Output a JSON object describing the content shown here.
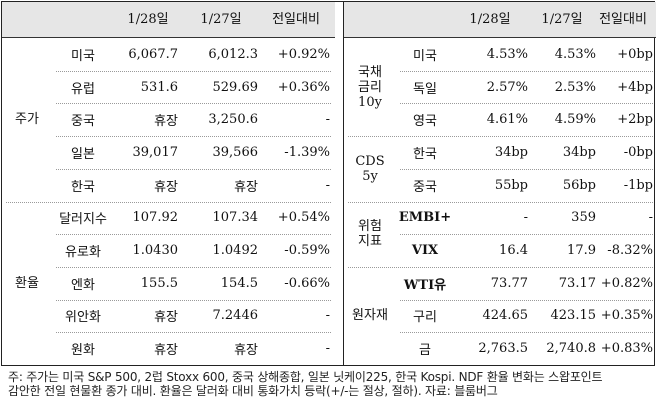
{
  "headers": {
    "d1": "1/28일",
    "d2": "1/27일",
    "chg": "전일대비"
  },
  "left": {
    "groups": [
      {
        "name": "주가",
        "rows": [
          {
            "label": "미국",
            "d1": "6,067.7",
            "d2": "6,012.3",
            "chg": "+0.92%"
          },
          {
            "label": "유럽",
            "d1": "531.6",
            "d2": "529.69",
            "chg": "+0.36%"
          },
          {
            "label": "중국",
            "d1": "휴장",
            "d2": "3,250.6",
            "chg": "-"
          },
          {
            "label": "일본",
            "d1": "39,017",
            "d2": "39,566",
            "chg": "-1.39%"
          },
          {
            "label": "한국",
            "d1": "휴장",
            "d2": "휴장",
            "chg": "-"
          }
        ]
      },
      {
        "name": "환율",
        "rows": [
          {
            "label": "달러지수",
            "d1": "107.92",
            "d2": "107.34",
            "chg": "+0.54%"
          },
          {
            "label": "유로화",
            "d1": "1.0430",
            "d2": "1.0492",
            "chg": "-0.59%"
          },
          {
            "label": "엔화",
            "d1": "155.5",
            "d2": "154.5",
            "chg": "-0.66%"
          },
          {
            "label": "위안화",
            "d1": "휴장",
            "d2": "7.2446",
            "chg": "-"
          },
          {
            "label": "원화",
            "d1": "휴장",
            "d2": "휴장",
            "chg": "-"
          }
        ]
      }
    ]
  },
  "right": {
    "groups": [
      {
        "name": "국채\n금리\n10y",
        "rows": [
          {
            "label": "미국",
            "d1": "4.53%",
            "d2": "4.53%",
            "chg": "+0bp"
          },
          {
            "label": "독일",
            "d1": "2.57%",
            "d2": "2.53%",
            "chg": "+4bp"
          },
          {
            "label": "영국",
            "d1": "4.61%",
            "d2": "4.59%",
            "chg": "+2bp"
          }
        ]
      },
      {
        "name": "CDS\n5y",
        "rows": [
          {
            "label": "한국",
            "d1": "34bp",
            "d2": "34bp",
            "chg": "-0bp"
          },
          {
            "label": "중국",
            "d1": "55bp",
            "d2": "56bp",
            "chg": "-1bp"
          }
        ]
      },
      {
        "name": "위험\n지표",
        "rows": [
          {
            "label": "EMBI+",
            "d1": "-",
            "d2": "359",
            "chg": "-"
          },
          {
            "label": "VIX",
            "d1": "16.4",
            "d2": "17.9",
            "chg": "-8.32%"
          }
        ]
      },
      {
        "name": "원자재",
        "rows": [
          {
            "label": "WTI유",
            "d1": "73.77",
            "d2": "73.17",
            "chg": "+0.82%"
          },
          {
            "label": "구리",
            "d1": "424.65",
            "d2": "423.15",
            "chg": "+0.35%"
          },
          {
            "label": "금",
            "d1": "2,763.5",
            "d2": "2,740.8",
            "chg": "+0.83%"
          }
        ]
      }
    ]
  },
  "footnote": {
    "line1": "주: 주가는 미국 S&P 500, 2럽 Stoxx 600, 중국 상해종합, 일본 닛케이225, 한국 Kospi. NDF 환율 변화는 스왑포인트",
    "line2": "감안한 전일 현물환 종가 대비. 환율은 달러화 대비 통화가치 등락(+/-는 절상, 절하). 자료: 블룸버그"
  }
}
